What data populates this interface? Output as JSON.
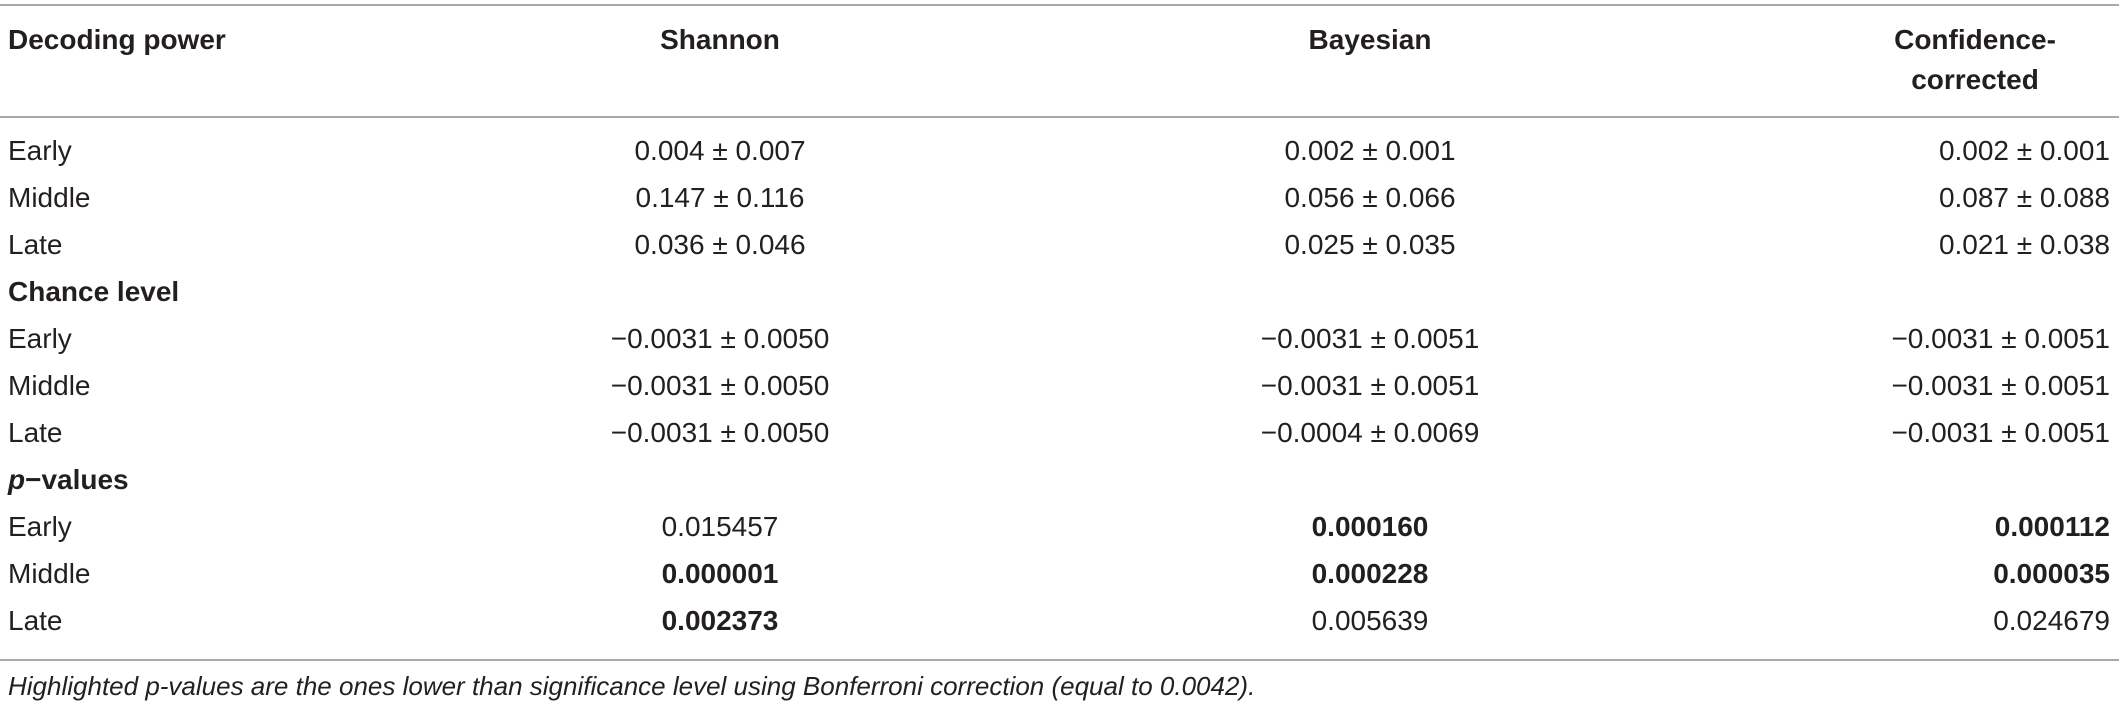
{
  "header": {
    "col0": "Decoding power",
    "col1": "Shannon",
    "col2": "Bayesian",
    "col3_line1": "Confidence-",
    "col3_line2": "corrected"
  },
  "sections": [
    {
      "rows": [
        {
          "label": "Early",
          "v1": "0.004 ± 0.007",
          "v2": "0.002 ± 0.001",
          "v3": "0.002 ± 0.001"
        },
        {
          "label": "Middle",
          "v1": "0.147 ± 0.116",
          "v2": "0.056 ± 0.066",
          "v3": "0.087 ± 0.088"
        },
        {
          "label": "Late",
          "v1": "0.036 ± 0.046",
          "v2": "0.025 ± 0.035",
          "v3": "0.021 ± 0.038"
        }
      ]
    },
    {
      "title": "Chance level",
      "rows": [
        {
          "label": "Early",
          "v1": "−0.0031 ± 0.0050",
          "v2": "−0.0031 ± 0.0051",
          "v3": "−0.0031 ± 0.0051"
        },
        {
          "label": "Middle",
          "v1": "−0.0031 ± 0.0050",
          "v2": "−0.0031 ± 0.0051",
          "v3": "−0.0031 ± 0.0051"
        },
        {
          "label": "Late",
          "v1": "−0.0031 ± 0.0050",
          "v2": "−0.0004 ± 0.0069",
          "v3": "−0.0031 ± 0.0051"
        }
      ]
    },
    {
      "title_p": "p",
      "title_rest": "−values",
      "rows": [
        {
          "label": "Early",
          "v1": "0.015457",
          "v2": "0.000160",
          "v3": "0.000112"
        },
        {
          "label": "Middle",
          "v1": "0.000001",
          "v2": "0.000228",
          "v3": "0.000035"
        },
        {
          "label": "Late",
          "v1": "0.002373",
          "v2": "0.005639",
          "v3": "0.024679"
        }
      ]
    }
  ],
  "caption": "Highlighted p-values are the ones lower than significance level using Bonferroni correction (equal to 0.0042)."
}
